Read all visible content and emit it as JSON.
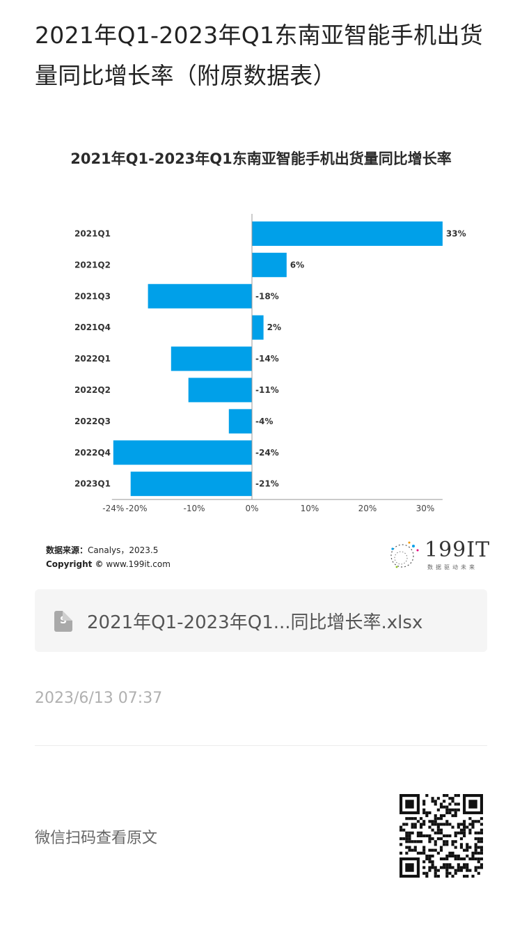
{
  "article": {
    "title": "2021年Q1-2023年Q1东南亚智能手机出货量同比增长率（附原数据表）"
  },
  "chart_data": {
    "type": "bar",
    "orientation": "horizontal",
    "title": "2021年Q1-2023年Q1东南亚智能手机出货量同比增长率",
    "categories": [
      "2021Q1",
      "2021Q2",
      "2021Q3",
      "2021Q4",
      "2022Q1",
      "2022Q2",
      "2022Q3",
      "2022Q4",
      "2023Q1"
    ],
    "values": [
      33,
      6,
      -18,
      2,
      -14,
      -11,
      -4,
      -24,
      -21
    ],
    "value_labels": [
      "33%",
      "6%",
      "-18%",
      "2%",
      "-14%",
      "-11%",
      "-4%",
      "-24%",
      "-21%"
    ],
    "xticks": [
      -24,
      -20,
      -10,
      0,
      10,
      20,
      30
    ],
    "xtick_labels": [
      "-24%",
      "-20%",
      "-10%",
      "0%",
      "10%",
      "20%",
      "30%"
    ],
    "xlim": [
      -24,
      33
    ],
    "bar_color": "#00a0e9",
    "grid": false,
    "legend": "none"
  },
  "source": {
    "label": "数据来源：",
    "value": "Canalys，2023.5",
    "copyright_label": "Copyright ©",
    "copyright_value": "www.199it.com"
  },
  "logo": {
    "text": "199IT",
    "slogan": "数据驱动未来"
  },
  "attachment": {
    "icon": "spreadsheet-file-icon",
    "icon_letter": "S",
    "name": "2021年Q1-2023年Q1...同比增长率.xlsx"
  },
  "meta": {
    "timestamp": "2023/6/13 07:37"
  },
  "footer": {
    "scan_text": "微信扫码查看原文",
    "qr_icon": "qr-code-icon"
  }
}
